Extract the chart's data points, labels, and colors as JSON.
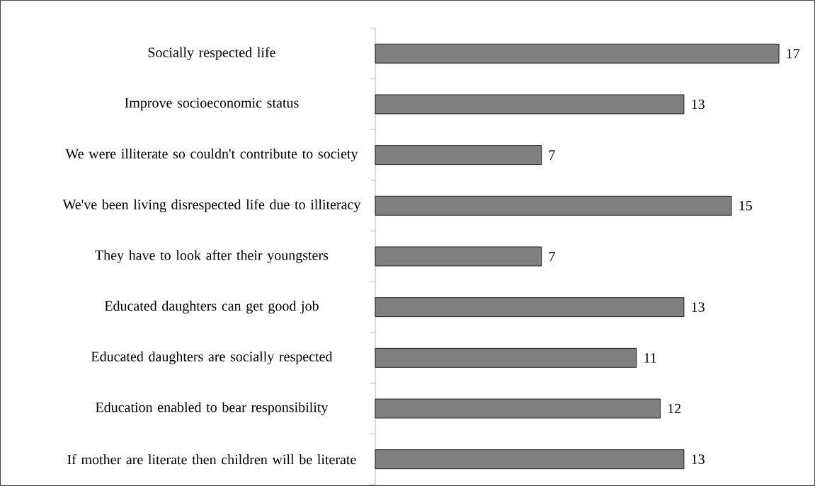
{
  "chart_data": {
    "type": "bar",
    "orientation": "horizontal",
    "color": "#808080",
    "data_labels": true,
    "categories": [
      "Socially respected life",
      "Improve socioeconomic status",
      "We were illiterate so couldn't contribute to society",
      "We've been living disrespected life due to illiteracy",
      "They have to look after their youngsters",
      "Educated daughters can get good job",
      "Educated daughters are socially respected",
      "Education enabled to bear responsibility",
      "If mother are literate then children will be literate"
    ],
    "values": [
      17,
      13,
      7,
      15,
      7,
      13,
      11,
      12,
      13
    ]
  }
}
